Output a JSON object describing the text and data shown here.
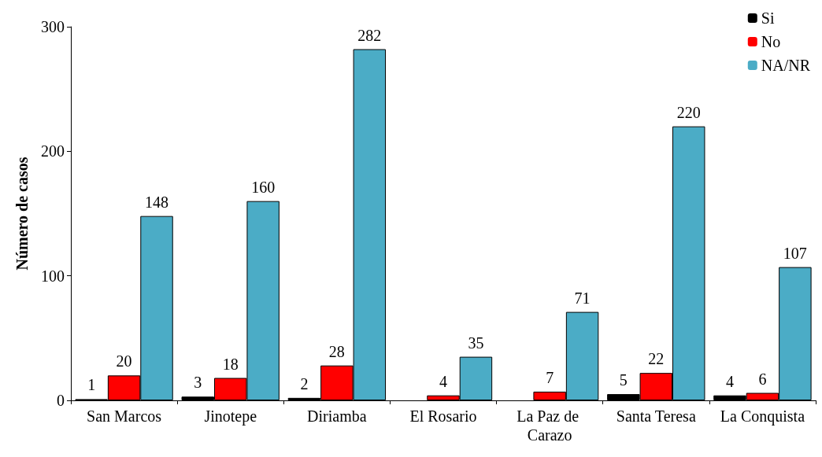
{
  "chart_data": {
    "type": "bar",
    "ylabel": "Número de casos",
    "categories": [
      "San Marcos",
      "Jinotepe",
      "Diriamba",
      "El Rosario",
      "La Paz de Carazo",
      "Santa Teresa",
      "La Conquista"
    ],
    "series": [
      {
        "name": "Si",
        "color": "#000000",
        "values": [
          1,
          3,
          2,
          null,
          null,
          5,
          4
        ]
      },
      {
        "name": "No",
        "color": "#ff0000",
        "values": [
          20,
          18,
          28,
          4,
          7,
          22,
          6
        ]
      },
      {
        "name": "NA/NR",
        "color": "#4bacc6",
        "values": [
          148,
          160,
          282,
          35,
          71,
          220,
          107
        ]
      }
    ],
    "ylim": [
      0,
      300
    ],
    "yticks": [
      0,
      100,
      200,
      300
    ],
    "grid": false,
    "legend": "top right",
    "data_labels": true
  }
}
